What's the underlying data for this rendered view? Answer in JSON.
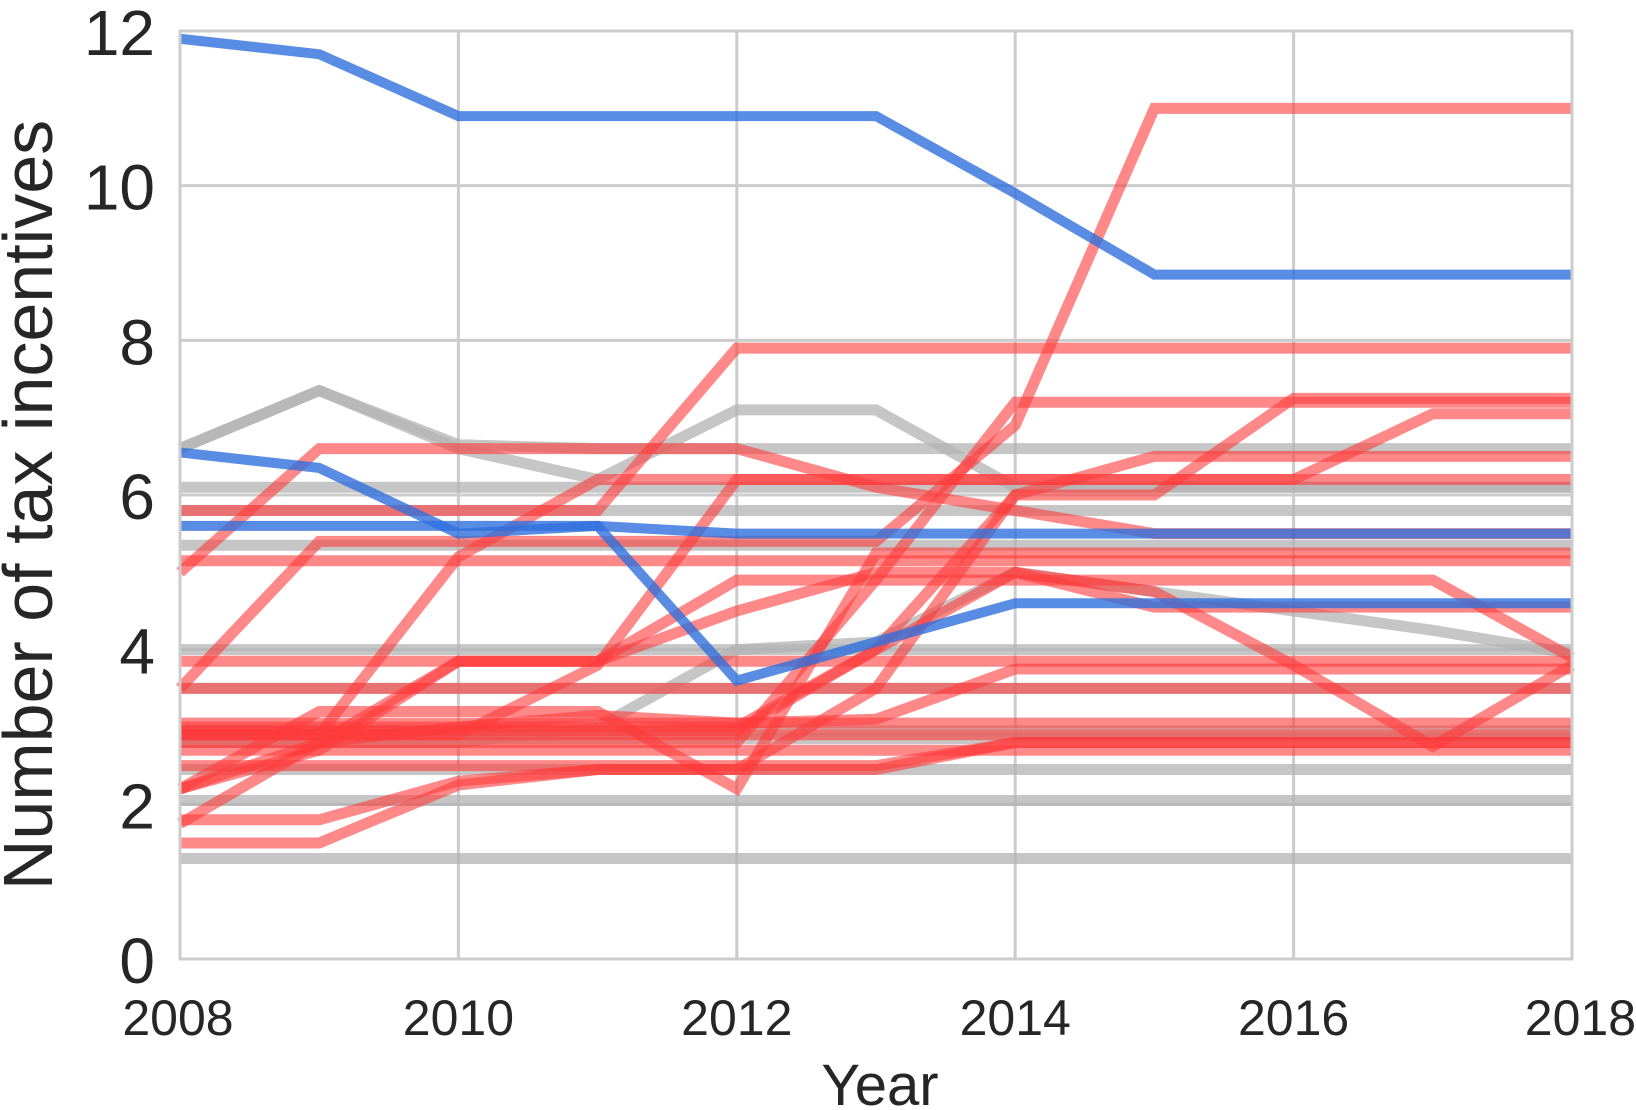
{
  "chart_data": {
    "type": "line",
    "xlabel": "Year",
    "ylabel": "Number of tax incentives",
    "xlim": [
      2008,
      2018
    ],
    "ylim": [
      0,
      12
    ],
    "x_ticks": [
      "2008",
      "2010",
      "2012",
      "2014",
      "2016",
      "2018"
    ],
    "y_ticks": [
      "0",
      "2",
      "4",
      "6",
      "8",
      "10",
      "12"
    ],
    "grid": true,
    "legend": "none",
    "colors": {
      "blue": "#2f6fdc",
      "red": "#ff3b3b",
      "gray": "#b3b3b3",
      "grid": "#cccccc"
    },
    "x": [
      2008,
      2009,
      2010,
      2011,
      2012,
      2013,
      2014,
      2015,
      2016,
      2017,
      2018
    ],
    "series": [
      {
        "color": "gray",
        "values": [
          1.3,
          1.3,
          1.3,
          1.3,
          1.3,
          1.3,
          1.3,
          1.3,
          1.3,
          1.3,
          1.3
        ]
      },
      {
        "color": "gray",
        "values": [
          2.05,
          2.05,
          2.05,
          2.05,
          2.05,
          2.05,
          2.05,
          2.05,
          2.05,
          2.05,
          2.05
        ]
      },
      {
        "color": "gray",
        "values": [
          2.45,
          2.45,
          2.45,
          2.45,
          2.45,
          2.45,
          2.45,
          2.45,
          2.45,
          2.45,
          2.45
        ]
      },
      {
        "color": "gray",
        "values": [
          2.85,
          2.85,
          2.85,
          2.85,
          2.85,
          2.85,
          2.85,
          2.85,
          2.85,
          2.85,
          2.85
        ]
      },
      {
        "color": "gray",
        "values": [
          2.95,
          2.95,
          2.95,
          2.95,
          2.95,
          2.95,
          2.95,
          2.95,
          2.95,
          2.95,
          2.95
        ]
      },
      {
        "color": "gray",
        "values": [
          3.5,
          3.5,
          3.5,
          3.5,
          3.5,
          3.5,
          3.5,
          3.5,
          3.5,
          3.5,
          3.5
        ]
      },
      {
        "color": "gray",
        "values": [
          4.0,
          4.0,
          4.0,
          4.0,
          4.0,
          4.0,
          4.0,
          4.0,
          4.0,
          4.0,
          4.0
        ]
      },
      {
        "color": "gray",
        "values": [
          5.35,
          5.35,
          5.35,
          5.35,
          5.35,
          5.35,
          5.35,
          5.35,
          5.35,
          5.35,
          5.35
        ]
      },
      {
        "color": "gray",
        "values": [
          5.8,
          5.8,
          5.8,
          5.8,
          5.8,
          5.8,
          5.8,
          5.8,
          5.8,
          5.8,
          5.8
        ]
      },
      {
        "color": "gray",
        "values": [
          6.1,
          6.1,
          6.1,
          6.1,
          6.1,
          6.1,
          6.1,
          6.1,
          6.1,
          6.1,
          6.1
        ]
      },
      {
        "color": "gray",
        "values": [
          6.6,
          7.35,
          6.65,
          6.6,
          6.6,
          6.6,
          6.6,
          6.6,
          6.6,
          6.6,
          6.6
        ]
      },
      {
        "color": "gray",
        "values": [
          6.6,
          7.35,
          6.6,
          6.2,
          7.1,
          7.1,
          6.1,
          6.1,
          6.1,
          6.1,
          6.1
        ]
      },
      {
        "color": "gray",
        "values": [
          2.8,
          2.8,
          2.8,
          3.0,
          4.0,
          4.1,
          5.0,
          4.75,
          4.5,
          4.25,
          3.95
        ]
      },
      {
        "color": "red",
        "values": [
          1.5,
          1.5,
          2.25,
          2.45,
          2.45,
          2.45,
          2.8,
          2.8,
          2.8,
          2.8,
          2.8
        ]
      },
      {
        "color": "red",
        "values": [
          1.8,
          1.8,
          2.3,
          2.45,
          2.45,
          3.5,
          3.5,
          3.5,
          3.5,
          3.5,
          3.5
        ]
      },
      {
        "color": "red",
        "values": [
          2.2,
          2.8,
          3.0,
          3.15,
          3.05,
          3.1,
          3.75,
          3.75,
          3.75,
          3.75,
          3.75
        ]
      },
      {
        "color": "red",
        "values": [
          2.5,
          2.5,
          2.5,
          2.5,
          2.5,
          2.5,
          2.8,
          2.8,
          2.8,
          2.8,
          2.8
        ]
      },
      {
        "color": "red",
        "values": [
          2.7,
          2.7,
          2.7,
          2.7,
          2.7,
          2.7,
          2.7,
          2.7,
          2.7,
          2.7,
          2.7
        ]
      },
      {
        "color": "red",
        "values": [
          2.9,
          2.9,
          2.9,
          2.9,
          2.9,
          2.9,
          2.9,
          2.9,
          2.9,
          2.9,
          2.9
        ]
      },
      {
        "color": "red",
        "values": [
          3.05,
          3.05,
          3.05,
          3.05,
          3.05,
          3.05,
          3.05,
          3.05,
          3.05,
          3.05,
          3.05
        ]
      },
      {
        "color": "red",
        "values": [
          3.85,
          3.85,
          3.85,
          3.85,
          3.85,
          3.85,
          3.85,
          3.85,
          3.85,
          3.85,
          3.85
        ]
      },
      {
        "color": "red",
        "values": [
          5.15,
          5.15,
          5.15,
          5.15,
          5.15,
          5.15,
          5.15,
          5.15,
          5.15,
          5.15,
          5.15
        ]
      },
      {
        "color": "red",
        "values": [
          2.2,
          2.7,
          3.85,
          3.85,
          4.9,
          4.9,
          4.9,
          4.9,
          4.9,
          4.9,
          3.9
        ]
      },
      {
        "color": "red",
        "values": [
          1.75,
          2.8,
          3.85,
          3.85,
          4.5,
          5.0,
          5.0,
          4.55,
          4.55,
          4.55,
          4.55
        ]
      },
      {
        "color": "red",
        "values": [
          2.2,
          3.2,
          3.2,
          3.2,
          2.2,
          5.25,
          5.25,
          5.25,
          5.25,
          5.25,
          5.25
        ]
      },
      {
        "color": "red",
        "values": [
          2.95,
          2.95,
          2.95,
          2.95,
          2.95,
          4.0,
          5.0,
          4.75,
          3.8,
          2.75,
          3.8
        ]
      },
      {
        "color": "red",
        "values": [
          3.5,
          5.4,
          5.4,
          5.4,
          5.4,
          5.4,
          6.9,
          11.0,
          11.0,
          11.0,
          11.0
        ]
      },
      {
        "color": "red",
        "values": [
          2.9,
          2.9,
          5.2,
          6.2,
          6.2,
          6.2,
          6.2,
          6.2,
          6.2,
          6.2,
          6.2
        ]
      },
      {
        "color": "red",
        "values": [
          2.9,
          2.9,
          2.9,
          3.8,
          6.2,
          6.2,
          6.2,
          6.2,
          6.2,
          7.05,
          7.05
        ]
      },
      {
        "color": "red",
        "values": [
          5.0,
          6.6,
          6.6,
          6.6,
          6.6,
          6.1,
          5.8,
          5.5,
          5.5,
          5.5,
          5.5
        ]
      },
      {
        "color": "red",
        "values": [
          5.8,
          5.8,
          5.8,
          5.8,
          7.9,
          7.9,
          7.9,
          7.9,
          7.9,
          7.9,
          7.9
        ]
      },
      {
        "color": "red",
        "values": [
          2.8,
          2.8,
          2.8,
          2.8,
          2.8,
          4.9,
          7.2,
          7.2,
          7.2,
          7.2,
          7.2
        ]
      },
      {
        "color": "red",
        "values": [
          3.5,
          3.5,
          3.5,
          3.5,
          3.5,
          3.5,
          6.0,
          6.0,
          7.25,
          7.25,
          7.25
        ]
      },
      {
        "color": "red",
        "values": [
          3.0,
          3.0,
          3.0,
          3.0,
          3.0,
          4.0,
          6.0,
          6.5,
          6.5,
          6.5,
          6.5
        ]
      },
      {
        "color": "blue",
        "values": [
          11.9,
          11.7,
          10.9,
          10.9,
          10.9,
          10.9,
          9.9,
          8.85,
          8.85,
          8.85,
          8.85
        ]
      },
      {
        "color": "blue",
        "values": [
          6.55,
          6.35,
          5.5,
          5.6,
          5.5,
          5.5,
          5.5,
          5.5,
          5.5,
          5.5,
          5.5
        ]
      },
      {
        "color": "blue",
        "values": [
          5.6,
          5.6,
          5.6,
          5.6,
          3.6,
          4.1,
          4.6,
          4.6,
          4.6,
          4.6,
          4.6
        ]
      }
    ]
  }
}
